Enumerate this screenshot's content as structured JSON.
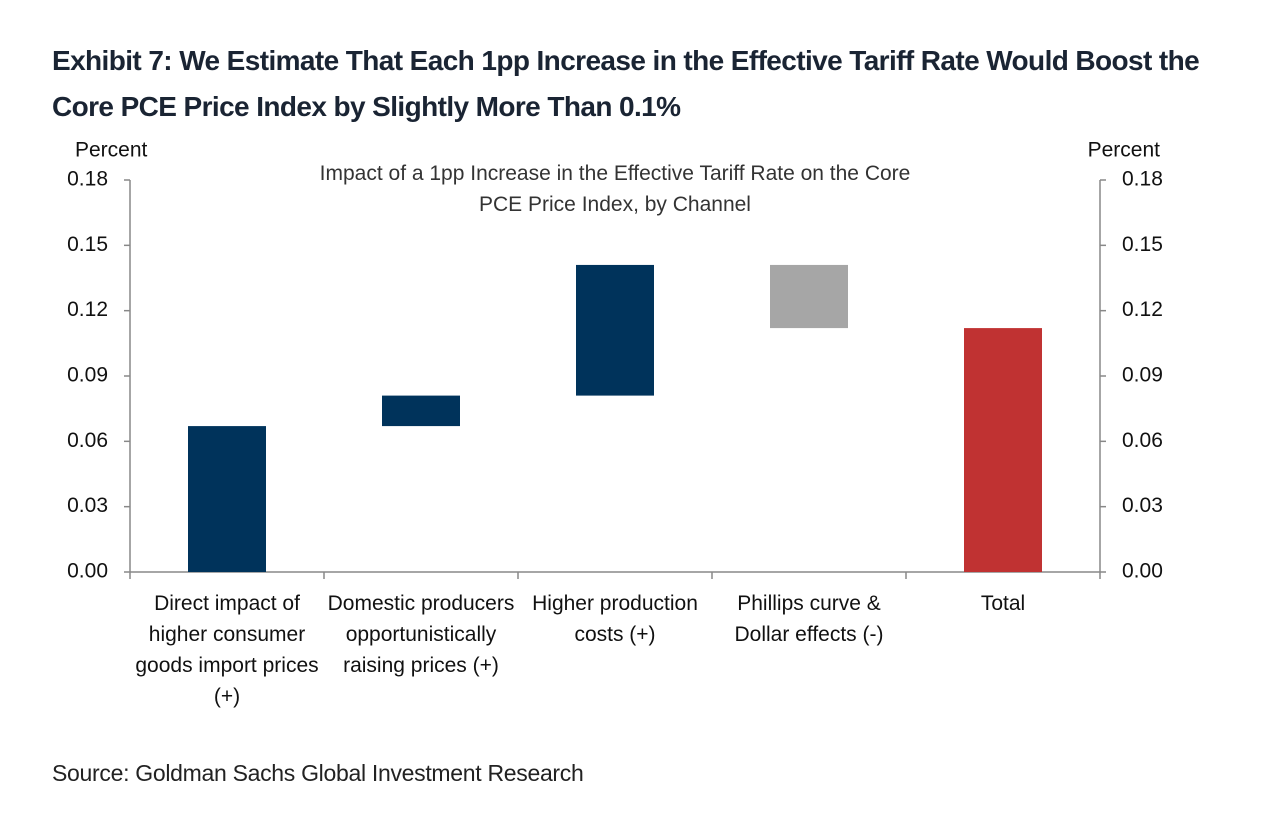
{
  "chart_data": {
    "type": "waterfall",
    "title": "Exhibit 7: We Estimate That Each 1pp Increase in the Effective Tariff Rate Would Boost the Core PCE Price Index by Slightly More Than 0.1%",
    "subtitle": "Impact of a 1pp Increase in the Effective Tariff Rate on the Core PCE Price Index, by Channel",
    "y_label": "Percent",
    "y2_label": "Percent",
    "source": "Source: Goldman Sachs Global Investment Research",
    "categories": [
      "Direct impact of higher consumer goods import prices (+)",
      "Domestic producers opportunistically raising prices (+)",
      "Higher production costs (+)",
      "Phillips curve & Dollar effects (-)",
      "Total"
    ],
    "values": [
      0.067,
      0.014,
      0.06,
      -0.029,
      0.112
    ],
    "colors": [
      "#00335b",
      "#00335b",
      "#00335b",
      "#a6a6a6",
      "#c03232"
    ],
    "totals": [
      4
    ],
    "ylim": [
      0,
      0.18
    ],
    "yticks": [
      {
        "value": 0,
        "label": "0.00"
      },
      {
        "value": 0.03,
        "label": "0.03"
      },
      {
        "value": 0.06,
        "label": "0.06"
      },
      {
        "value": 0.09,
        "label": "0.09"
      },
      {
        "value": 0.12,
        "label": "0.12"
      },
      {
        "value": 0.15,
        "label": "0.15"
      },
      {
        "value": 0.18,
        "label": "0.18"
      }
    ],
    "y2lim": [
      0,
      0.18
    ],
    "y2ticks": [
      {
        "value": 0,
        "label": "0.00"
      },
      {
        "value": 0.03,
        "label": "0.03"
      },
      {
        "value": 0.06,
        "label": "0.06"
      },
      {
        "value": 0.09,
        "label": "0.09"
      },
      {
        "value": 0.12,
        "label": "0.12"
      },
      {
        "value": 0.15,
        "label": "0.15"
      },
      {
        "value": 0.18,
        "label": "0.18"
      }
    ]
  }
}
